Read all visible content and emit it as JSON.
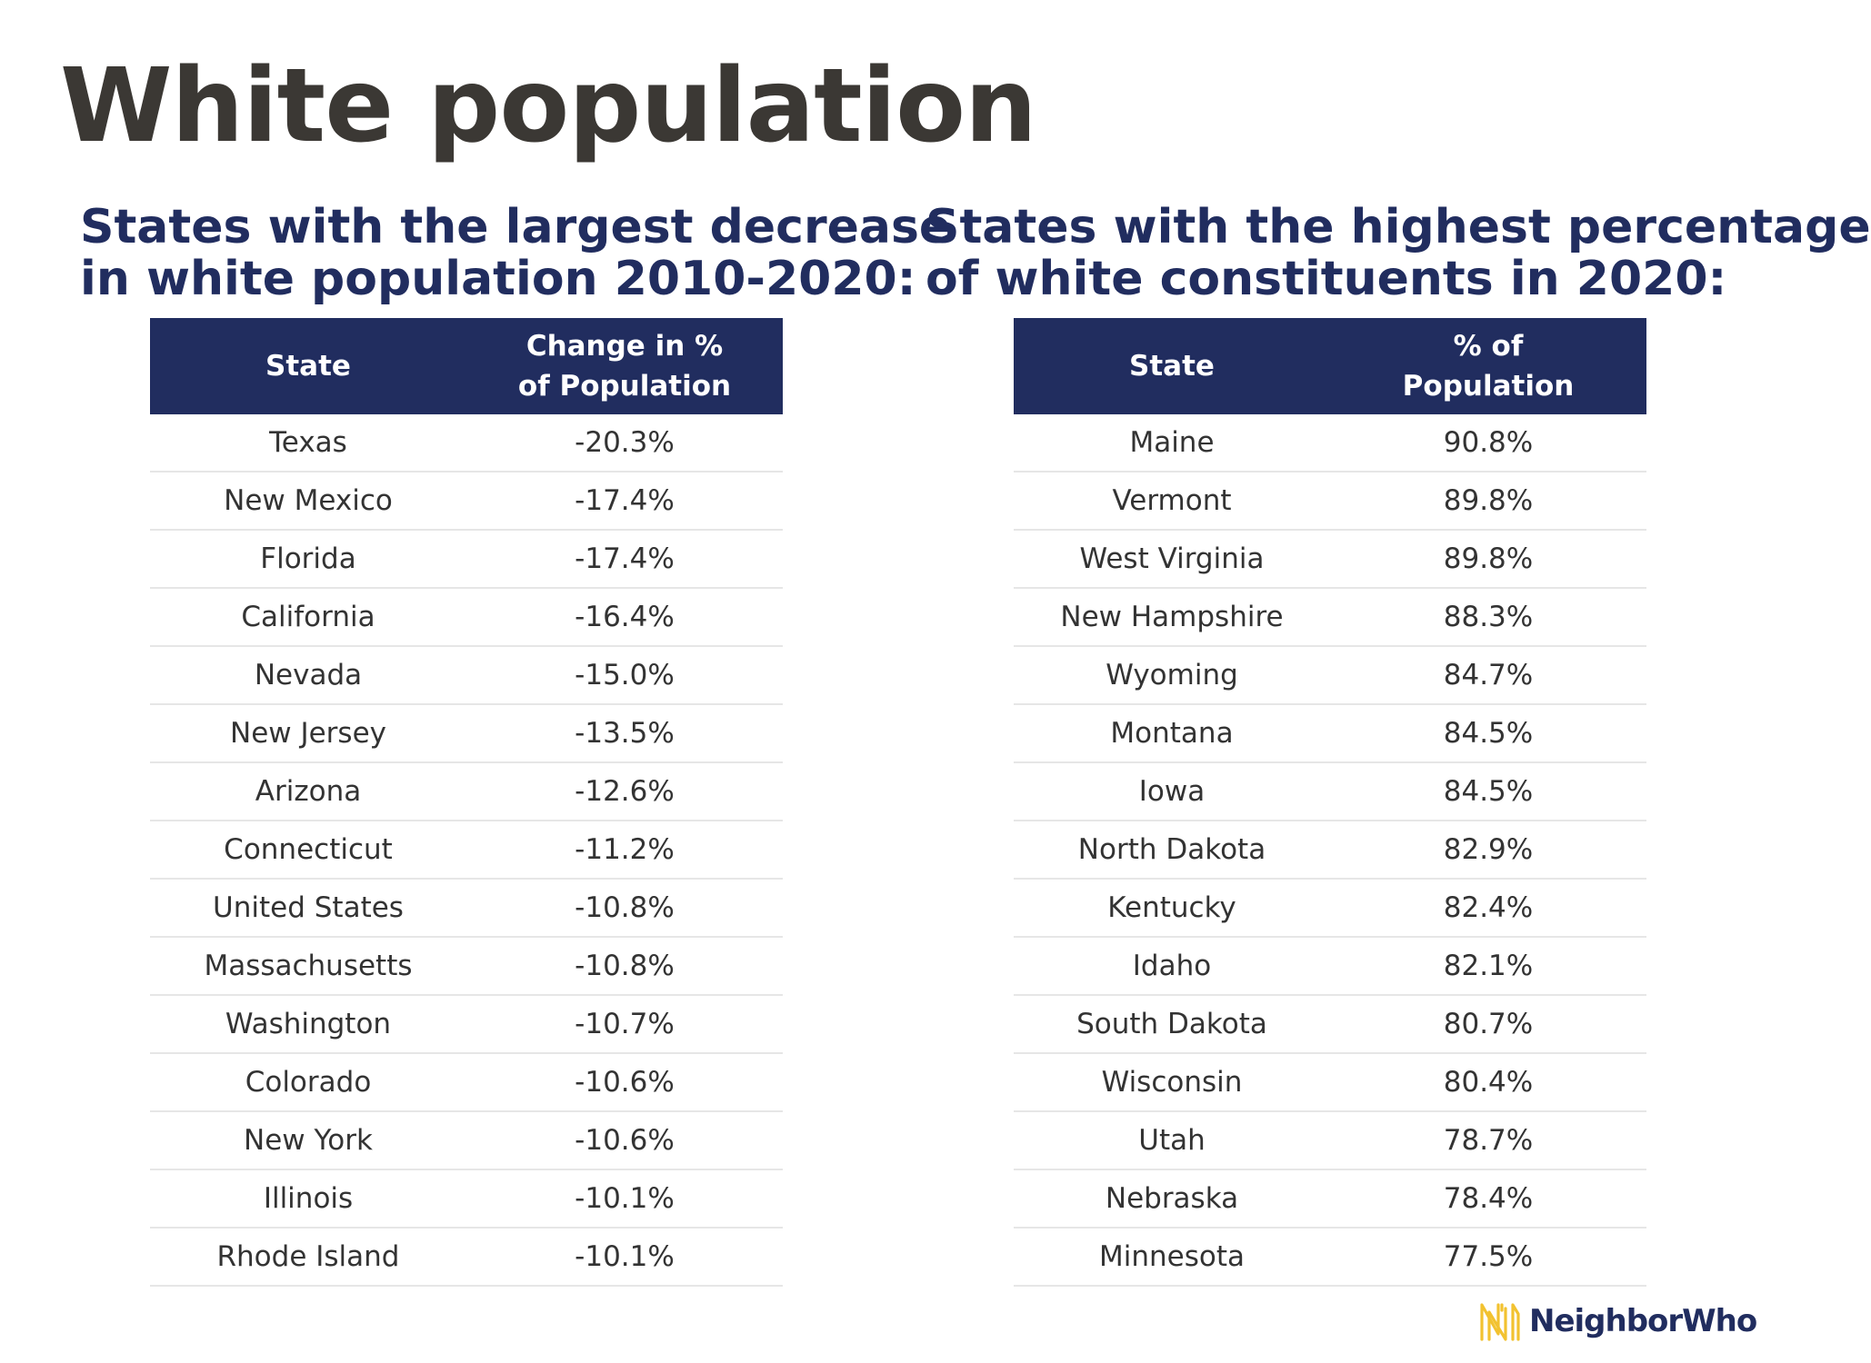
{
  "title": "White population",
  "tables": [
    {
      "heading_lines": [
        "States with the largest decrease",
        "in white population 2010-2020:"
      ],
      "columns": [
        [
          "State"
        ],
        [
          "Change in %",
          "of Population"
        ]
      ],
      "rows": [
        [
          "Texas",
          "-20.3%"
        ],
        [
          "New Mexico",
          "-17.4%"
        ],
        [
          "Florida",
          "-17.4%"
        ],
        [
          "California",
          "-16.4%"
        ],
        [
          "Nevada",
          "-15.0%"
        ],
        [
          "New Jersey",
          "-13.5%"
        ],
        [
          "Arizona",
          "-12.6%"
        ],
        [
          "Connecticut",
          "-11.2%"
        ],
        [
          "United States",
          "-10.8%"
        ],
        [
          "Massachusetts",
          "-10.8%"
        ],
        [
          "Washington",
          "-10.7%"
        ],
        [
          "Colorado",
          "-10.6%"
        ],
        [
          "New York",
          "-10.6%"
        ],
        [
          "Illinois",
          "-10.1%"
        ],
        [
          "Rhode Island",
          "-10.1%"
        ]
      ]
    },
    {
      "heading_lines": [
        "States with the highest percentage",
        "of white constituents in 2020:"
      ],
      "columns": [
        [
          "State"
        ],
        [
          "% of",
          "Population"
        ]
      ],
      "rows": [
        [
          "Maine",
          "90.8%"
        ],
        [
          "Vermont",
          "89.8%"
        ],
        [
          "West Virginia",
          "89.8%"
        ],
        [
          "New Hampshire",
          "88.3%"
        ],
        [
          "Wyoming",
          "84.7%"
        ],
        [
          "Montana",
          "84.5%"
        ],
        [
          "Iowa",
          "84.5%"
        ],
        [
          "North Dakota",
          "82.9%"
        ],
        [
          "Kentucky",
          "82.4%"
        ],
        [
          "Idaho",
          "82.1%"
        ],
        [
          "South Dakota",
          "80.7%"
        ],
        [
          "Wisconsin",
          "80.4%"
        ],
        [
          "Utah",
          "78.7%"
        ],
        [
          "Nebraska",
          "78.4%"
        ],
        [
          "Minnesota",
          "77.5%"
        ]
      ]
    }
  ],
  "chart_data": [
    {
      "type": "table",
      "title": "States with the largest decrease in white population 2010-2020:",
      "columns": [
        "State",
        "Change in % of Population"
      ],
      "rows": [
        [
          "Texas",
          -20.3
        ],
        [
          "New Mexico",
          -17.4
        ],
        [
          "Florida",
          -17.4
        ],
        [
          "California",
          -16.4
        ],
        [
          "Nevada",
          -15.0
        ],
        [
          "New Jersey",
          -13.5
        ],
        [
          "Arizona",
          -12.6
        ],
        [
          "Connecticut",
          -11.2
        ],
        [
          "United States",
          -10.8
        ],
        [
          "Massachusetts",
          -10.8
        ],
        [
          "Washington",
          -10.7
        ],
        [
          "Colorado",
          -10.6
        ],
        [
          "New York",
          -10.6
        ],
        [
          "Illinois",
          -10.1
        ],
        [
          "Rhode Island",
          -10.1
        ]
      ]
    },
    {
      "type": "table",
      "title": "States with the highest percentage of white constituents in 2020:",
      "columns": [
        "State",
        "% of Population"
      ],
      "rows": [
        [
          "Maine",
          90.8
        ],
        [
          "Vermont",
          89.8
        ],
        [
          "West Virginia",
          89.8
        ],
        [
          "New Hampshire",
          88.3
        ],
        [
          "Wyoming",
          84.7
        ],
        [
          "Montana",
          84.5
        ],
        [
          "Iowa",
          84.5
        ],
        [
          "North Dakota",
          82.9
        ],
        [
          "Kentucky",
          82.4
        ],
        [
          "Idaho",
          82.1
        ],
        [
          "South Dakota",
          80.7
        ],
        [
          "Wisconsin",
          80.4
        ],
        [
          "Utah",
          78.7
        ],
        [
          "Nebraska",
          78.4
        ],
        [
          "Minnesota",
          77.5
        ]
      ]
    }
  ],
  "brand": {
    "name": "NeighborWho",
    "logo_icon": "nw-logo-icon",
    "logo_color": "#f2c230"
  },
  "colors": {
    "header_bg": "#212d5f",
    "heading_text": "#212d5f",
    "title_text": "#3b3834",
    "row_divider": "#e6e6e6"
  }
}
